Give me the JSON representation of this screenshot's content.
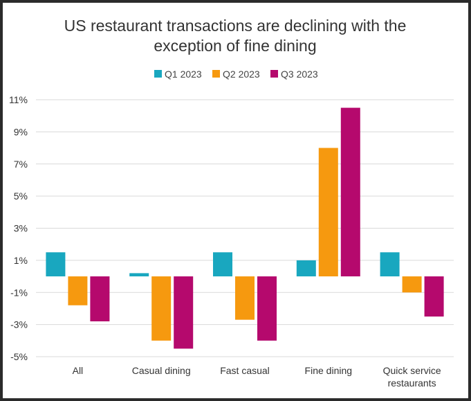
{
  "colors": {
    "q1": "#19a7bf",
    "q2": "#f6990f",
    "q3": "#b5096d"
  },
  "chart_data": {
    "type": "bar",
    "title_lines": [
      "US restaurant transactions are declining with the",
      "exception of fine dining"
    ],
    "title": "US restaurant transactions are declining with the exception of fine dining",
    "xlabel": "",
    "ylabel": "",
    "ylim": [
      -5,
      11
    ],
    "y_ticks": [
      {
        "value": 11,
        "label": "11%"
      },
      {
        "value": 9,
        "label": "9%"
      },
      {
        "value": 7,
        "label": "7%"
      },
      {
        "value": 5,
        "label": "5%"
      },
      {
        "value": 3,
        "label": "3%"
      },
      {
        "value": 1,
        "label": "1%"
      },
      {
        "value": -1,
        "label": "-1%"
      },
      {
        "value": -3,
        "label": "-3%"
      },
      {
        "value": -5,
        "label": "-5%"
      }
    ],
    "grid": true,
    "legend_position": "top-center",
    "categories": [
      [
        "All"
      ],
      [
        "Casual dining"
      ],
      [
        "Fast casual"
      ],
      [
        "Fine dining"
      ],
      [
        "Quick service",
        "restaurants"
      ]
    ],
    "series": [
      {
        "name": "Q1 2023",
        "color_key": "q1",
        "values": [
          1.5,
          0.2,
          1.5,
          1.0,
          1.5
        ]
      },
      {
        "name": "Q2 2023",
        "color_key": "q2",
        "values": [
          -1.8,
          -4.0,
          -2.7,
          8.0,
          -1.0
        ]
      },
      {
        "name": "Q3 2023",
        "color_key": "q3",
        "values": [
          -2.8,
          -4.5,
          -4.0,
          10.5,
          -2.5
        ]
      }
    ]
  }
}
